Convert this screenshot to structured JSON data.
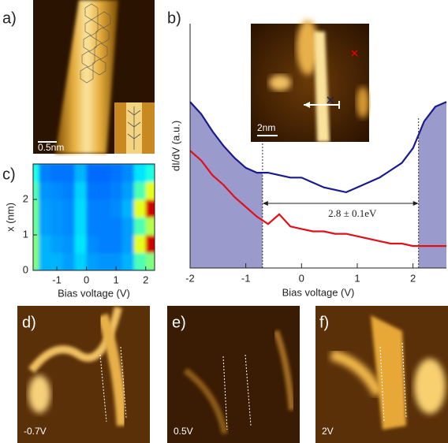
{
  "panel_labels": [
    "a)",
    "b)",
    "c)",
    "d)",
    "e)",
    "f)"
  ],
  "scale_bars": {
    "a": "0.5nm",
    "b_inset": "2nm"
  },
  "bias_labels": [
    "-0.7V",
    "0.5V",
    "2V"
  ],
  "chart_data": [
    {
      "type": "line",
      "x": [
        -2,
        -1.8,
        -1.6,
        -1.4,
        -1.2,
        -1.0,
        -0.8,
        -0.6,
        -0.4,
        -0.2,
        0,
        0.2,
        0.4,
        0.6,
        0.8,
        1.0,
        1.2,
        1.4,
        1.6,
        1.8,
        2.0,
        2.2,
        2.4,
        2.6
      ],
      "series": [
        {
          "color": "#1a1a8c",
          "values": [
            6.8,
            6.3,
            5.6,
            5.0,
            4.5,
            4.1,
            3.9,
            3.9,
            3.8,
            3.7,
            3.7,
            3.5,
            3.3,
            3.2,
            3.1,
            3.3,
            3.5,
            3.7,
            4.0,
            4.3,
            4.9,
            6.0,
            6.6,
            6.8
          ]
        },
        {
          "color": "#e0101a",
          "values": [
            4.8,
            4.4,
            3.8,
            3.4,
            2.9,
            2.5,
            2.1,
            1.8,
            2.2,
            1.7,
            1.6,
            1.5,
            1.5,
            1.4,
            1.4,
            1.3,
            1.2,
            1.1,
            1.0,
            1.0,
            0.9,
            0.9,
            0.9,
            0.9
          ]
        }
      ],
      "xlim": [
        -2,
        2.6
      ],
      "ylim": [
        0,
        10
      ],
      "xticks": [
        -2,
        -1,
        0,
        1,
        2
      ],
      "xlabel": "Bias voltage (V)",
      "ylabel": "dI/dV (a.u.)",
      "gap_edges": [
        -0.7,
        2.1
      ],
      "shade_color": "#9a9acc",
      "annotation": "2.8 ± 0.1eV"
    },
    {
      "type": "heatmap",
      "x": [
        -1.8,
        -1.4,
        -1.0,
        -0.6,
        -0.2,
        0.2,
        0.6,
        1.0,
        1.4,
        1.8,
        2.2
      ],
      "y": [
        0.25,
        0.75,
        1.25,
        1.75,
        2.25,
        2.75
      ],
      "values": [
        [
          0.5,
          0.3,
          0.3,
          0.28,
          0.33,
          0.28,
          0.27,
          0.27,
          0.3,
          0.45,
          0.5
        ],
        [
          0.5,
          0.3,
          0.28,
          0.27,
          0.35,
          0.26,
          0.25,
          0.25,
          0.28,
          0.6,
          0.92
        ],
        [
          0.48,
          0.28,
          0.27,
          0.26,
          0.34,
          0.25,
          0.25,
          0.25,
          0.28,
          0.45,
          0.55
        ],
        [
          0.48,
          0.28,
          0.27,
          0.26,
          0.34,
          0.25,
          0.25,
          0.26,
          0.3,
          0.6,
          0.92
        ],
        [
          0.45,
          0.27,
          0.26,
          0.25,
          0.33,
          0.24,
          0.24,
          0.25,
          0.28,
          0.45,
          0.6
        ],
        [
          0.4,
          0.25,
          0.24,
          0.24,
          0.3,
          0.23,
          0.23,
          0.24,
          0.26,
          0.35,
          0.4
        ]
      ],
      "xlim": [
        -1.8,
        2.3
      ],
      "ylim": [
        0,
        3
      ],
      "xticks": [
        -1,
        0,
        1,
        2
      ],
      "yticks": [
        0,
        1,
        2
      ],
      "xlabel": "Bias voltage (V)",
      "ylabel": "x (nm)"
    }
  ]
}
